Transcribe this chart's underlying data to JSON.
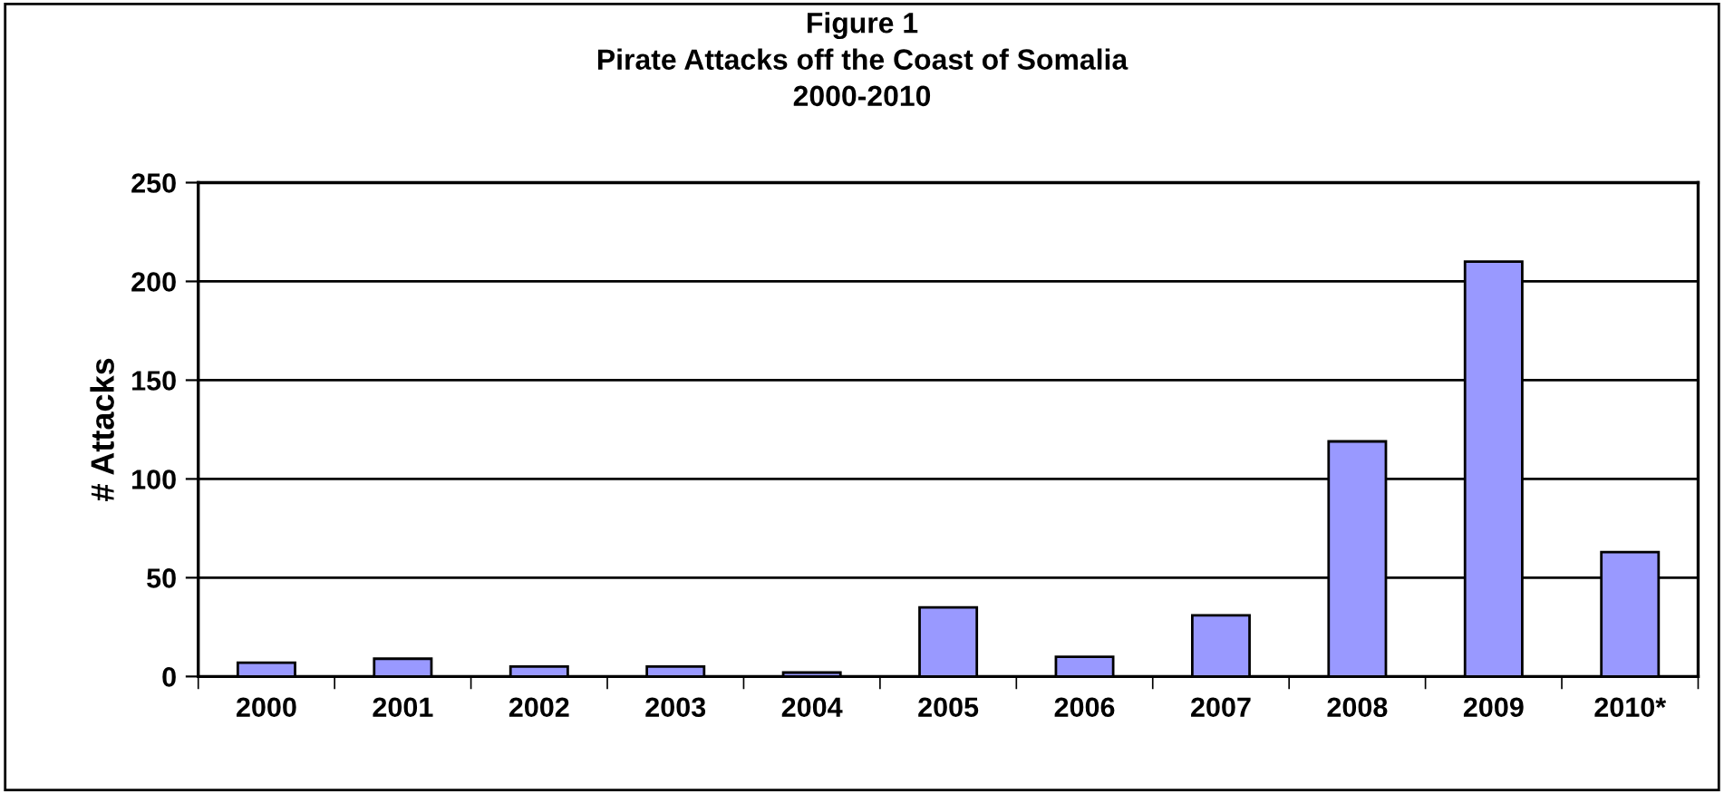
{
  "chart_data": {
    "type": "bar",
    "title": "Figure 1\nPirate Attacks off the Coast of Somalia\n2000-2010",
    "ylabel": "# Attacks",
    "categories": [
      "2000",
      "2001",
      "2002",
      "2003",
      "2004",
      "2005",
      "2006",
      "2007",
      "2008",
      "2009",
      "2010*"
    ],
    "values": [
      7,
      9,
      5,
      5,
      2,
      35,
      10,
      31,
      119,
      210,
      63
    ],
    "color": "#9999ff",
    "ylim": [
      0,
      250
    ],
    "yticks": [
      0,
      50,
      100,
      150,
      200,
      250
    ],
    "grid": "y",
    "legend": false
  }
}
